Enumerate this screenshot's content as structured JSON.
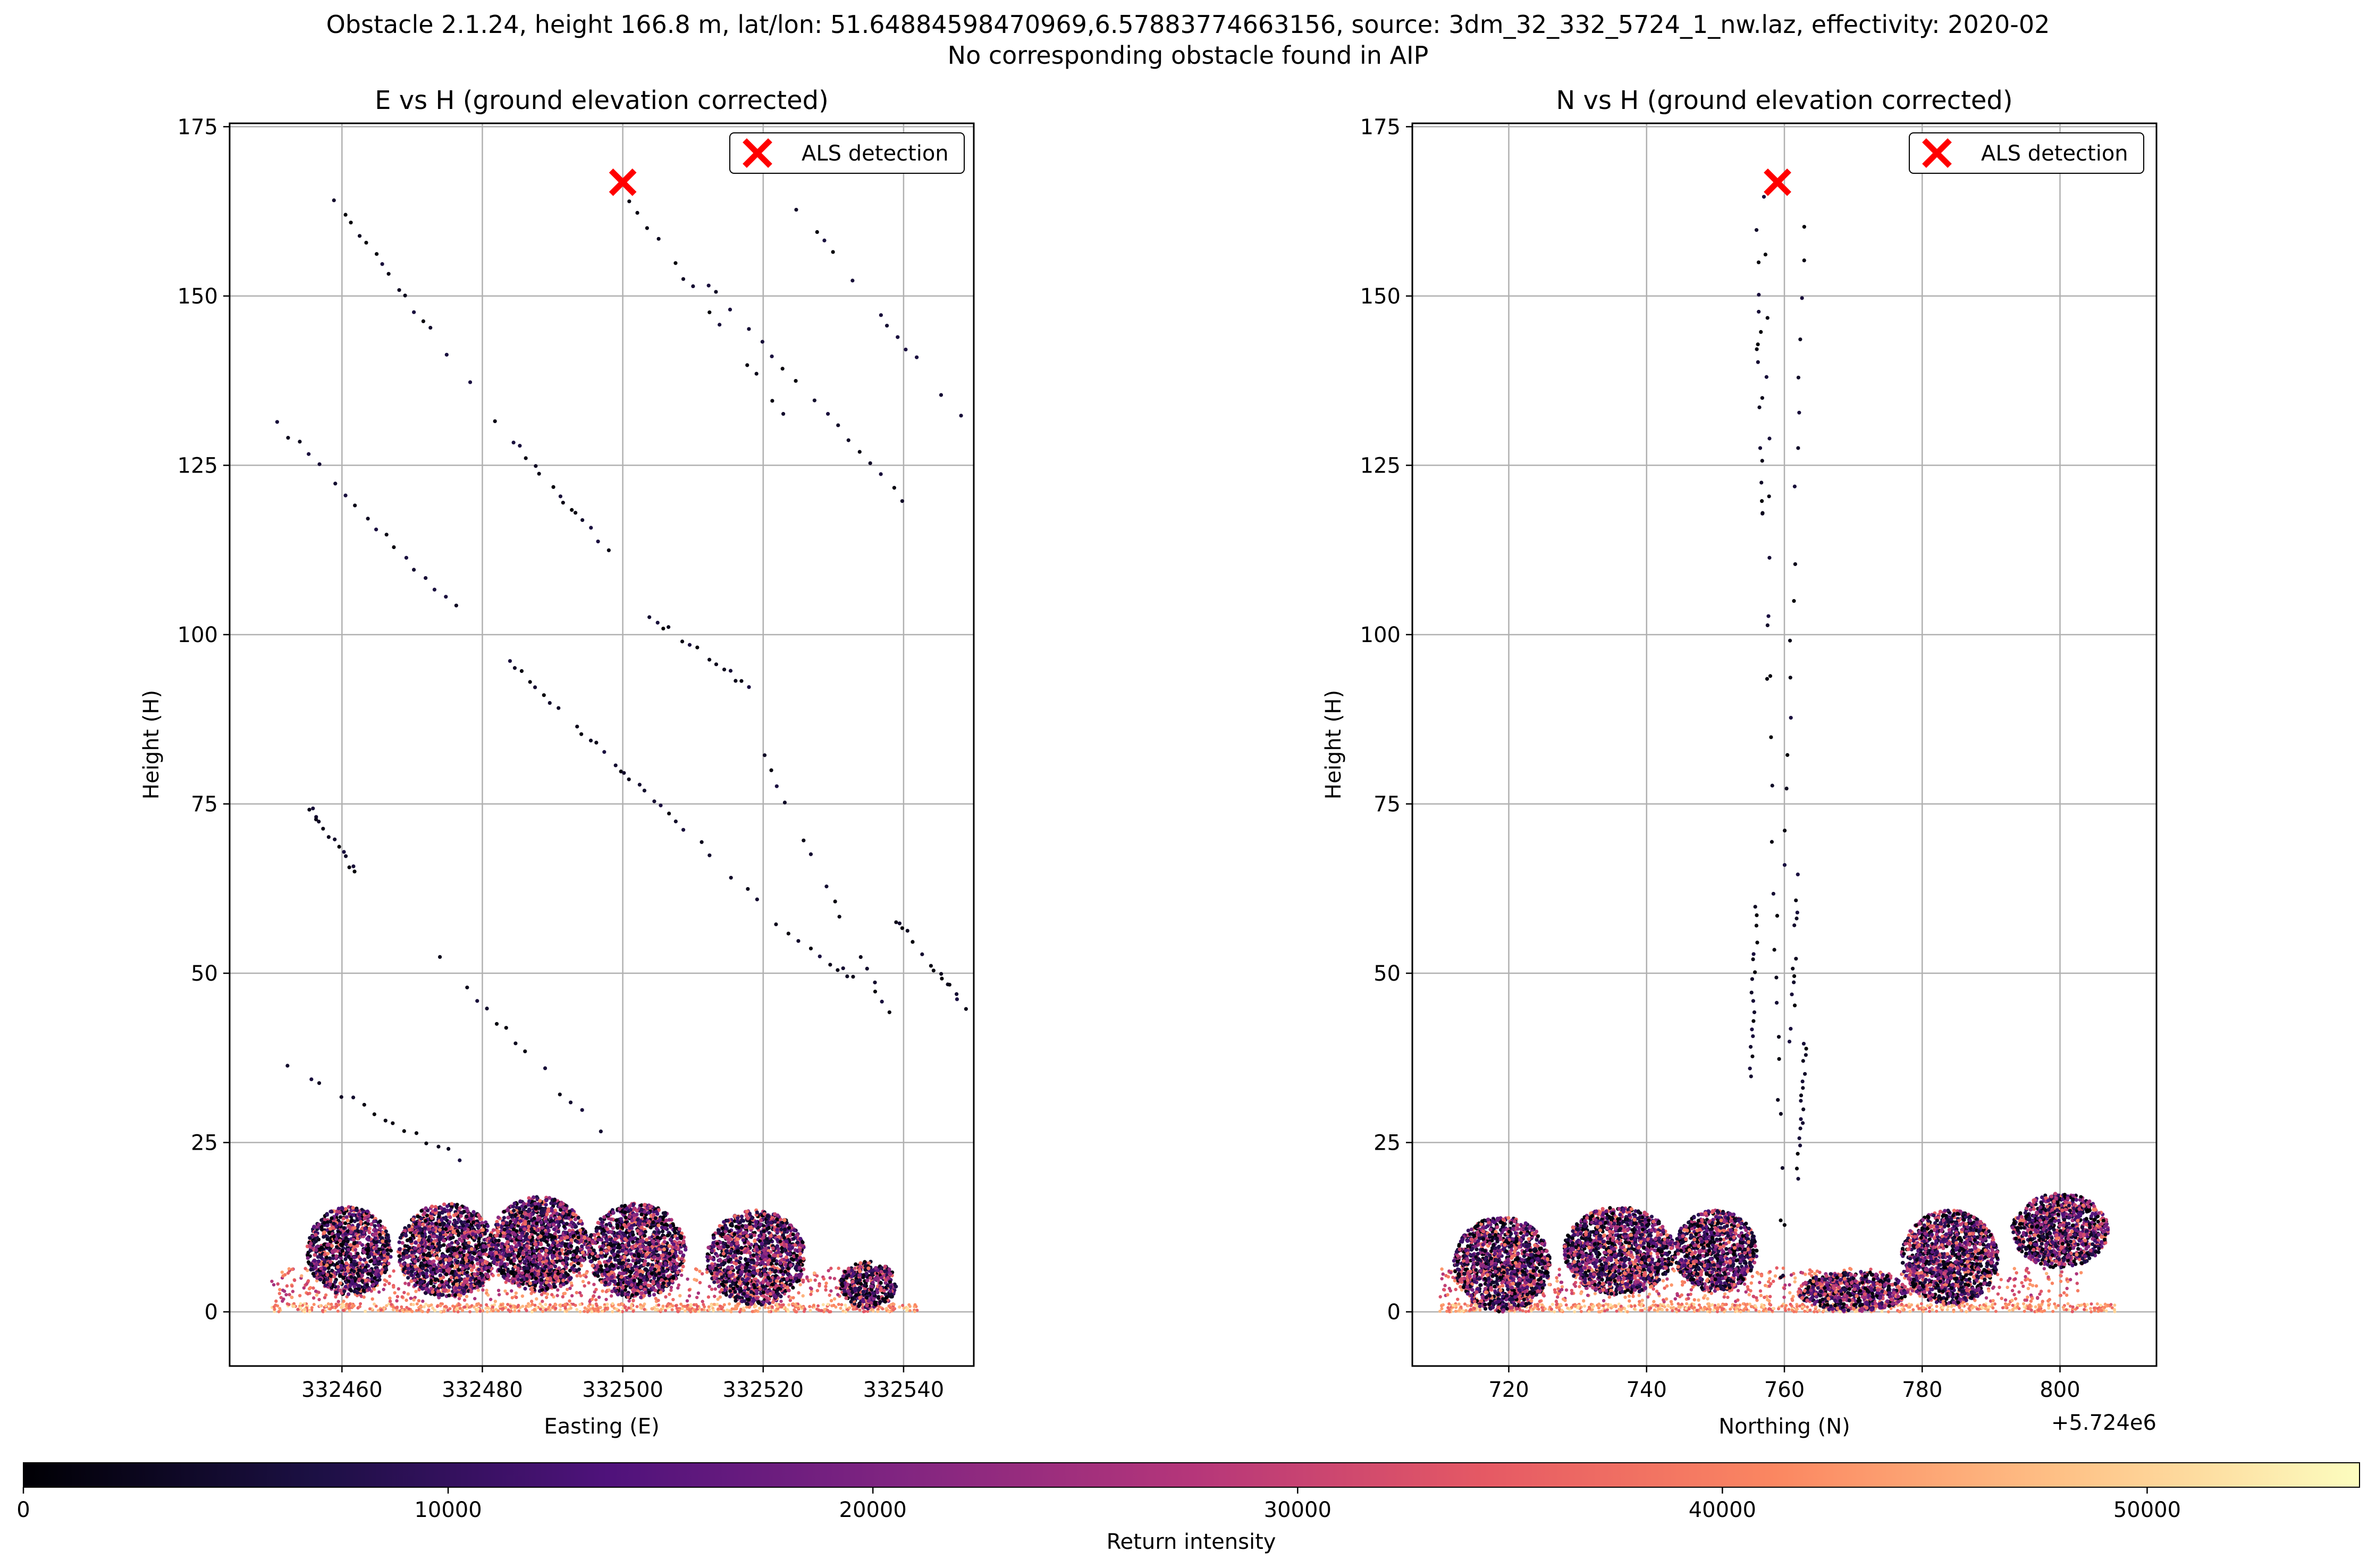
{
  "figure": {
    "title_line1": "Obstacle 2.1.24, height 166.8 m, lat/lon: 51.64884598470969,6.57883774663156, source: 3dm_32_332_5724_1_nw.laz, effectivity: 2020-02",
    "title_line2": "No corresponding obstacle found in AIP"
  },
  "chart_data": [
    {
      "type": "scatter",
      "title": "E vs H (ground elevation corrected)",
      "xlabel": "Easting (E)",
      "ylabel": "Height (H)",
      "xlim": [
        332444,
        332550
      ],
      "ylim": [
        -8,
        175.5
      ],
      "xticks": [
        332460,
        332480,
        332500,
        332520,
        332540
      ],
      "xtick_labels": [
        "332460",
        "332480",
        "332500",
        "332520",
        "332540"
      ],
      "yticks": [
        0,
        25,
        50,
        75,
        100,
        125,
        150,
        175
      ],
      "ytick_labels": [
        "0",
        "25",
        "50",
        "75",
        "100",
        "125",
        "150",
        "175"
      ],
      "offset_label": "",
      "grid": true,
      "legend": {
        "label": "ALS detection",
        "position": "top-right"
      },
      "detection": {
        "x": 332500,
        "y": 166.8,
        "color": "#ff0000"
      },
      "scan_lines": [
        {
          "x0": 332458,
          "y0": 165.5,
          "x1": 332478,
          "y1": 137
        },
        {
          "x0": 332482,
          "y0": 132,
          "x1": 332498,
          "y1": 112
        },
        {
          "x0": 332501,
          "y0": 164,
          "x1": 332524,
          "y1": 131
        },
        {
          "x0": 332525,
          "y0": 163,
          "x1": 332548,
          "y1": 132
        },
        {
          "x0": 332451,
          "y0": 131,
          "x1": 332476,
          "y1": 104
        },
        {
          "x0": 332483,
          "y0": 97,
          "x1": 332500,
          "y1": 80
        },
        {
          "x0": 332501,
          "y0": 105,
          "x1": 332518,
          "y1": 92
        },
        {
          "x0": 332512,
          "y0": 152,
          "x1": 332540,
          "y1": 120
        },
        {
          "x0": 332500,
          "y0": 80,
          "x1": 332520,
          "y1": 60
        },
        {
          "x0": 332520,
          "y0": 82,
          "x1": 332538,
          "y1": 44
        },
        {
          "x0": 332539,
          "y0": 58,
          "x1": 332549,
          "y1": 45
        },
        {
          "x0": 332455,
          "y0": 75,
          "x1": 332462,
          "y1": 65
        },
        {
          "x0": 332474,
          "y0": 52,
          "x1": 332498,
          "y1": 25
        },
        {
          "x0": 332451,
          "y0": 37,
          "x1": 332478,
          "y1": 22
        },
        {
          "x0": 332522,
          "y0": 57,
          "x1": 332536,
          "y1": 47
        }
      ],
      "ground_clusters": [
        {
          "cx": 332461,
          "cy": 9,
          "rx": 6,
          "ry": 6.5
        },
        {
          "cx": 332475,
          "cy": 9,
          "rx": 7,
          "ry": 7
        },
        {
          "cx": 332488,
          "cy": 10,
          "rx": 7,
          "ry": 7
        },
        {
          "cx": 332502,
          "cy": 9,
          "rx": 7,
          "ry": 7
        },
        {
          "cx": 332519,
          "cy": 8,
          "rx": 7,
          "ry": 7
        },
        {
          "cx": 332535,
          "cy": 4,
          "rx": 4,
          "ry": 3.5
        }
      ],
      "ground_x_range": [
        332450,
        332542
      ]
    },
    {
      "type": "scatter",
      "title": "N vs H (ground elevation corrected)",
      "xlabel": "Northing (N)",
      "ylabel": "Height (H)",
      "xlim": [
        5724706,
        5724814
      ],
      "ylim": [
        -8,
        175.5
      ],
      "xticks": [
        5724720,
        5724740,
        5724760,
        5724780,
        5724800
      ],
      "xtick_labels": [
        "720",
        "740",
        "760",
        "780",
        "800"
      ],
      "yticks": [
        0,
        25,
        50,
        75,
        100,
        125,
        150,
        175
      ],
      "ytick_labels": [
        "0",
        "25",
        "50",
        "75",
        "100",
        "125",
        "150",
        "175"
      ],
      "offset_label": "+5.724e6",
      "grid": true,
      "legend": {
        "label": "ALS detection",
        "position": "top-right"
      },
      "detection": {
        "x": 5724759,
        "y": 166.8,
        "color": "#ff0000"
      },
      "scan_lines": [
        {
          "x0": 5724759.5,
          "y0": 5,
          "x1": 5724757,
          "y1": 165
        },
        {
          "x0": 5724760,
          "y0": 5,
          "x1": 5724756,
          "y1": 150
        },
        {
          "x0": 5724762,
          "y0": 20,
          "x1": 5724763,
          "y1": 40
        },
        {
          "x0": 5724761,
          "y0": 40,
          "x1": 5724762,
          "y1": 65
        },
        {
          "x0": 5724760,
          "y0": 66,
          "x1": 5724763,
          "y1": 166
        },
        {
          "x0": 5724755,
          "y0": 35,
          "x1": 5724756,
          "y1": 60
        },
        {
          "x0": 5724757,
          "y0": 115,
          "x1": 5724756,
          "y1": 160
        }
      ],
      "ground_clusters": [
        {
          "cx": 5724719,
          "cy": 7,
          "rx": 7,
          "ry": 7
        },
        {
          "cx": 5724736,
          "cy": 9,
          "rx": 8,
          "ry": 6.5
        },
        {
          "cx": 5724750,
          "cy": 9,
          "rx": 6,
          "ry": 6
        },
        {
          "cx": 5724770,
          "cy": 3,
          "rx": 8,
          "ry": 3
        },
        {
          "cx": 5724784,
          "cy": 8,
          "rx": 7,
          "ry": 7
        },
        {
          "cx": 5724800,
          "cy": 12,
          "rx": 7,
          "ry": 5.5
        }
      ],
      "ground_x_range": [
        5724710,
        5724808
      ]
    }
  ],
  "colorbar": {
    "label": "Return intensity",
    "min": 0,
    "max": 55000,
    "ticks": [
      0,
      10000,
      20000,
      30000,
      40000,
      50000
    ],
    "tick_labels": [
      "0",
      "10000",
      "20000",
      "30000",
      "40000",
      "50000"
    ],
    "colormap": "magma",
    "colormap_stops": [
      "#000004",
      "#1c1044",
      "#4f127b",
      "#812581",
      "#b5367a",
      "#e55964",
      "#fb8761",
      "#fec287",
      "#fcfdbf"
    ]
  }
}
